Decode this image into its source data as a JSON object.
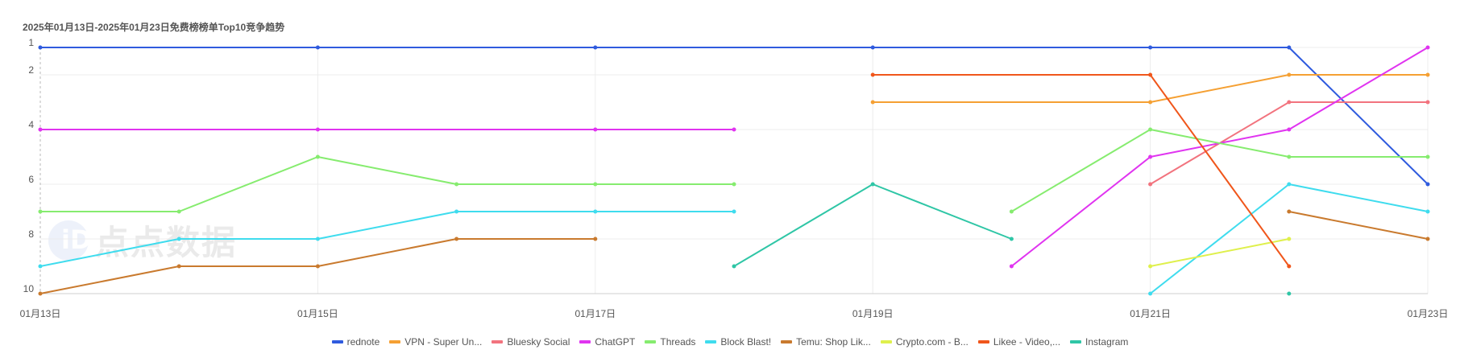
{
  "watermark": {
    "logo_letter": "iD",
    "text": "点点数据"
  },
  "chart_data": {
    "type": "line",
    "title": "2025年01月13日-2025年01月23日免费榜榜单Top10竞争趋势",
    "xlabel": "",
    "ylabel": "",
    "y_inverted": true,
    "ylim": [
      1,
      10
    ],
    "y_ticks": [
      "1",
      "2",
      "4",
      "6",
      "8",
      "10"
    ],
    "y_tick_values": [
      1,
      2,
      4,
      6,
      8,
      10
    ],
    "x_tick_labels": [
      "01月13日",
      "01月15日",
      "01月17日",
      "01月19日",
      "01月21日",
      "01月23日"
    ],
    "x_tick_index": [
      0,
      4,
      8,
      12,
      16,
      20
    ],
    "x_count": 21,
    "grid": true,
    "legend_position": "bottom",
    "series": [
      {
        "name": "rednote",
        "color": "#2f5bde",
        "points": [
          [
            0,
            1
          ],
          [
            4,
            1
          ],
          [
            8,
            1
          ],
          [
            12,
            1
          ],
          [
            16,
            1
          ],
          [
            18,
            1
          ],
          [
            20,
            6
          ]
        ]
      },
      {
        "name": "VPN - Super Un...",
        "color": "#f5a033",
        "points": [
          [
            12,
            3
          ],
          [
            16,
            3
          ],
          [
            18,
            2
          ],
          [
            20,
            2
          ]
        ]
      },
      {
        "name": "Bluesky Social",
        "color": "#f2737e",
        "points": [
          [
            16,
            6
          ],
          [
            18,
            3
          ],
          [
            20,
            3
          ]
        ]
      },
      {
        "name": "ChatGPT",
        "color": "#e034f0",
        "points": [
          [
            0,
            4
          ],
          [
            4,
            4
          ],
          [
            8,
            4
          ],
          [
            10,
            4
          ]
        ],
        "points2": [
          [
            14,
            9
          ],
          [
            16,
            5
          ],
          [
            18,
            4
          ],
          [
            20,
            1
          ]
        ]
      },
      {
        "name": "Threads",
        "color": "#86ec6f",
        "points": [
          [
            0,
            7
          ],
          [
            2,
            7
          ],
          [
            4,
            5
          ],
          [
            6,
            6
          ],
          [
            8,
            6
          ],
          [
            10,
            6
          ]
        ],
        "points2": [
          [
            14,
            7
          ],
          [
            16,
            4
          ],
          [
            18,
            5
          ],
          [
            20,
            5
          ]
        ]
      },
      {
        "name": "Block Blast!",
        "color": "#3fdcee",
        "points": [
          [
            0,
            9
          ],
          [
            2,
            8
          ],
          [
            4,
            8
          ],
          [
            6,
            7
          ],
          [
            8,
            7
          ],
          [
            10,
            7
          ]
        ],
        "points2": [
          [
            16,
            10
          ],
          [
            18,
            6
          ],
          [
            20,
            7
          ]
        ]
      },
      {
        "name": "Temu: Shop Lik...",
        "color": "#c97a2e",
        "points": [
          [
            0,
            10
          ],
          [
            2,
            9
          ],
          [
            4,
            9
          ],
          [
            6,
            8
          ],
          [
            8,
            8
          ]
        ],
        "points2": [
          [
            18,
            7
          ],
          [
            20,
            8
          ]
        ]
      },
      {
        "name": "Crypto.com - B...",
        "color": "#dff04c",
        "points": [
          [
            16,
            9
          ],
          [
            18,
            8
          ]
        ]
      },
      {
        "name": "Likee - Video,...",
        "color": "#f0561b",
        "points": [
          [
            12,
            2
          ],
          [
            16,
            2
          ],
          [
            18,
            9
          ]
        ]
      },
      {
        "name": "Instagram",
        "color": "#2fc6a6",
        "points": [
          [
            10,
            9
          ],
          [
            12,
            6
          ],
          [
            14,
            8
          ]
        ],
        "points2": [
          [
            18,
            10
          ]
        ]
      }
    ]
  }
}
